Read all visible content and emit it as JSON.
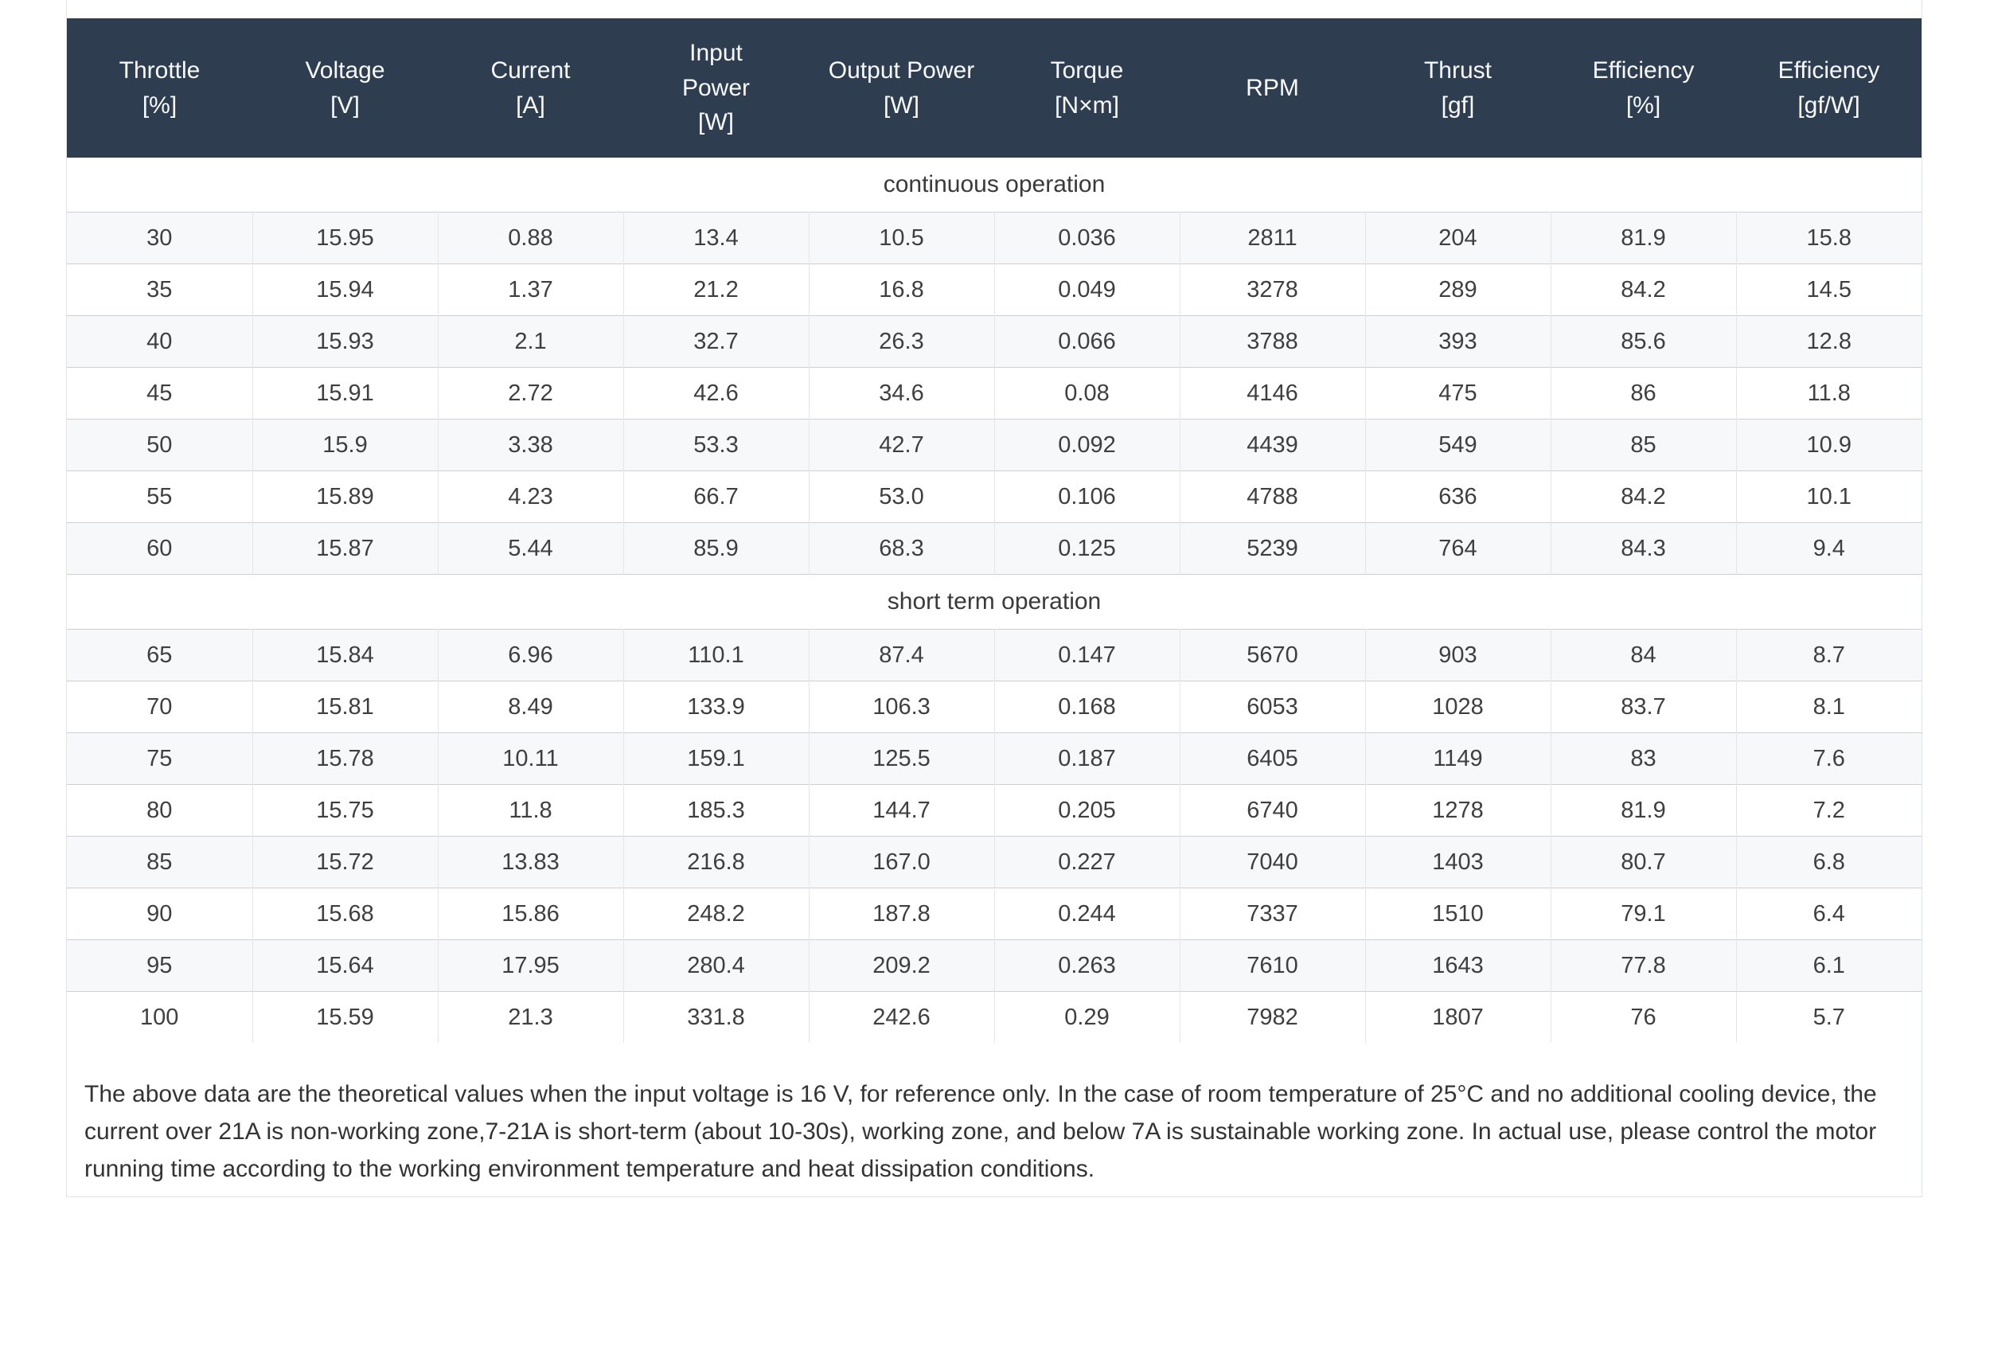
{
  "table": {
    "columns": [
      "Throttle\n[%]",
      "Voltage\n[V]",
      "Current\n[A]",
      "Input\nPower\n[W]",
      "Output Power\n[W]",
      "Torque\n[N×m]",
      "RPM",
      "Thrust\n[gf]",
      "Efficiency\n[%]",
      "Efficiency\n[gf/W]"
    ],
    "sections": [
      {
        "label": "continuous operation",
        "rows": [
          [
            "30",
            "15.95",
            "0.88",
            "13.4",
            "10.5",
            "0.036",
            "2811",
            "204",
            "81.9",
            "15.8"
          ],
          [
            "35",
            "15.94",
            "1.37",
            "21.2",
            "16.8",
            "0.049",
            "3278",
            "289",
            "84.2",
            "14.5"
          ],
          [
            "40",
            "15.93",
            "2.1",
            "32.7",
            "26.3",
            "0.066",
            "3788",
            "393",
            "85.6",
            "12.8"
          ],
          [
            "45",
            "15.91",
            "2.72",
            "42.6",
            "34.6",
            "0.08",
            "4146",
            "475",
            "86",
            "11.8"
          ],
          [
            "50",
            "15.9",
            "3.38",
            "53.3",
            "42.7",
            "0.092",
            "4439",
            "549",
            "85",
            "10.9"
          ],
          [
            "55",
            "15.89",
            "4.23",
            "66.7",
            "53.0",
            "0.106",
            "4788",
            "636",
            "84.2",
            "10.1"
          ],
          [
            "60",
            "15.87",
            "5.44",
            "85.9",
            "68.3",
            "0.125",
            "5239",
            "764",
            "84.3",
            "9.4"
          ]
        ]
      },
      {
        "label": "short term operation",
        "rows": [
          [
            "65",
            "15.84",
            "6.96",
            "110.1",
            "87.4",
            "0.147",
            "5670",
            "903",
            "84",
            "8.7"
          ],
          [
            "70",
            "15.81",
            "8.49",
            "133.9",
            "106.3",
            "0.168",
            "6053",
            "1028",
            "83.7",
            "8.1"
          ],
          [
            "75",
            "15.78",
            "10.11",
            "159.1",
            "125.5",
            "0.187",
            "6405",
            "1149",
            "83",
            "7.6"
          ],
          [
            "80",
            "15.75",
            "11.8",
            "185.3",
            "144.7",
            "0.205",
            "6740",
            "1278",
            "81.9",
            "7.2"
          ],
          [
            "85",
            "15.72",
            "13.83",
            "216.8",
            "167.0",
            "0.227",
            "7040",
            "1403",
            "80.7",
            "6.8"
          ],
          [
            "90",
            "15.68",
            "15.86",
            "248.2",
            "187.8",
            "0.244",
            "7337",
            "1510",
            "79.1",
            "6.4"
          ],
          [
            "95",
            "15.64",
            "17.95",
            "280.4",
            "209.2",
            "0.263",
            "7610",
            "1643",
            "77.8",
            "6.1"
          ],
          [
            "100",
            "15.59",
            "21.3",
            "331.8",
            "242.6",
            "0.29",
            "7982",
            "1807",
            "76",
            "5.7"
          ]
        ]
      }
    ]
  },
  "note": "The above data are the theoretical values when the input voltage is 16 V, for reference only. In the case of room temperature of 25°C and no additional cooling device, the current over 21A is non-working zone,7-21A is short-term (about 10-30s), working zone, and below 7A is sustainable working zone. In actual use, please control the motor running time according to the working environment temperature and heat dissipation conditions.",
  "colors": {
    "header_bg": "#2e3e50",
    "header_text": "#f7f9fa",
    "stripe_row_bg": "#f7f8fa",
    "row_border": "#cfd0d4",
    "column_border": "#e6e6ea",
    "panel_border": "#dfe3ea",
    "body_text": "#3f3f3f"
  }
}
